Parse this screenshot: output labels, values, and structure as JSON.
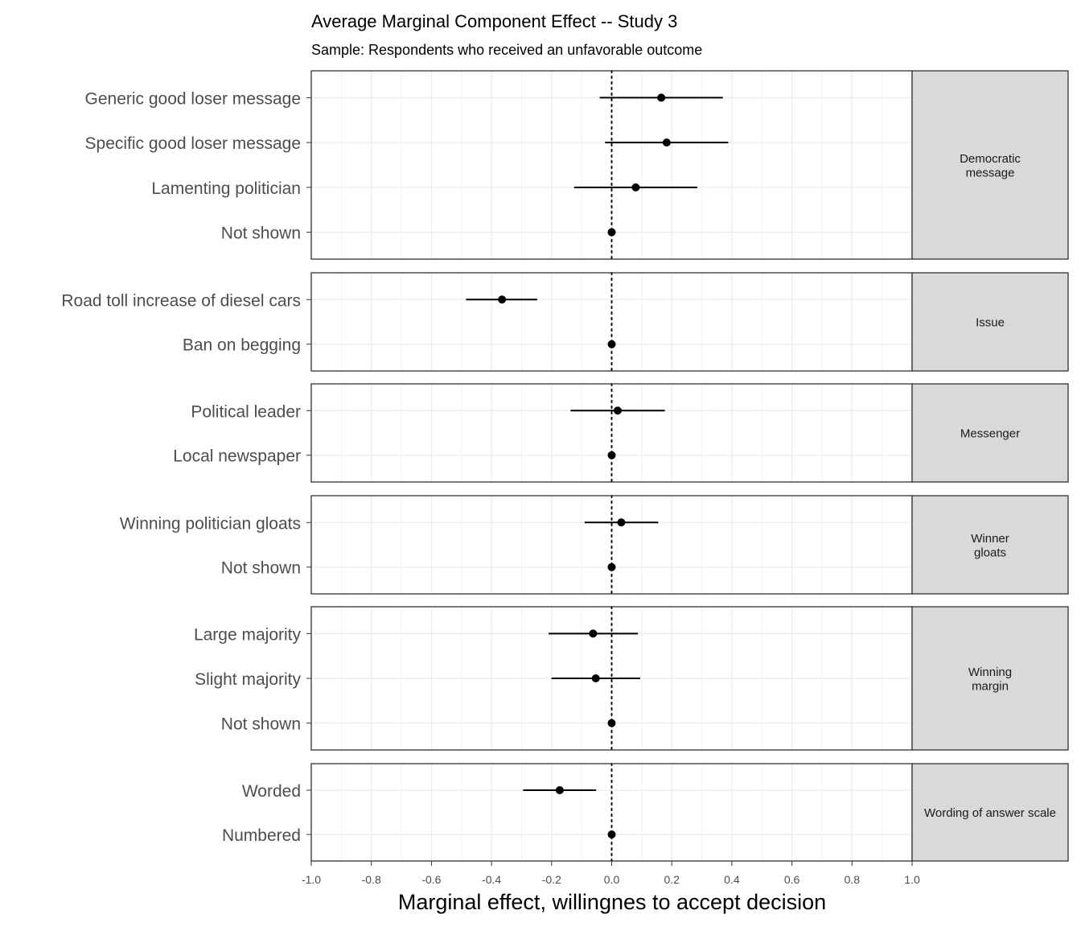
{
  "chart_data": {
    "type": "scatter",
    "subtype": "coefficient-plot-with-error-bars",
    "title": "Average Marginal Component Effect -- Study 3",
    "subtitle": "Sample: Respondents who received an unfavorable outcome",
    "xlabel": "Marginal effect, willingnes to accept decision",
    "xlim": [
      -1.0,
      1.0
    ],
    "xticks": [
      "-1.0",
      "-0.8",
      "-0.6",
      "-0.4",
      "-0.2",
      "0.0",
      "0.2",
      "0.4",
      "0.6",
      "0.8",
      "1.0"
    ],
    "reference_line": 0,
    "grid": true,
    "facets": [
      {
        "label": [
          "Democratic",
          "message"
        ],
        "rows": [
          {
            "label": "Generic good loser message",
            "estimate": 0.165,
            "lower": -0.04,
            "upper": 0.37
          },
          {
            "label": "Specific good loser message",
            "estimate": 0.183,
            "lower": -0.022,
            "upper": 0.388
          },
          {
            "label": "Lamenting politician",
            "estimate": 0.08,
            "lower": -0.125,
            "upper": 0.285
          },
          {
            "label": "Not shown",
            "estimate": 0,
            "lower": null,
            "upper": null
          }
        ]
      },
      {
        "label": [
          "Issue"
        ],
        "rows": [
          {
            "label": "Road toll increase of diesel cars",
            "estimate": -0.365,
            "lower": -0.485,
            "upper": -0.248
          },
          {
            "label": "Ban on begging",
            "estimate": 0,
            "lower": null,
            "upper": null
          }
        ]
      },
      {
        "label": [
          "Messenger"
        ],
        "rows": [
          {
            "label": "Political leader",
            "estimate": 0.02,
            "lower": -0.137,
            "upper": 0.177
          },
          {
            "label": "Local newspaper",
            "estimate": 0,
            "lower": null,
            "upper": null
          }
        ]
      },
      {
        "label": [
          "Winner",
          "gloats"
        ],
        "rows": [
          {
            "label": "Winning politician gloats",
            "estimate": 0.032,
            "lower": -0.09,
            "upper": 0.155
          },
          {
            "label": "Not shown",
            "estimate": 0,
            "lower": null,
            "upper": null
          }
        ]
      },
      {
        "label": [
          "Winning",
          "margin"
        ],
        "rows": [
          {
            "label": "Large majority",
            "estimate": -0.062,
            "lower": -0.21,
            "upper": 0.087
          },
          {
            "label": "Slight majority",
            "estimate": -0.053,
            "lower": -0.2,
            "upper": 0.095
          },
          {
            "label": "Not shown",
            "estimate": 0,
            "lower": null,
            "upper": null
          }
        ]
      },
      {
        "label": [
          "Wording of answer scale"
        ],
        "rows": [
          {
            "label": "Worded",
            "estimate": -0.173,
            "lower": -0.295,
            "upper": -0.052
          },
          {
            "label": "Numbered",
            "estimate": 0,
            "lower": null,
            "upper": null
          }
        ]
      }
    ]
  }
}
